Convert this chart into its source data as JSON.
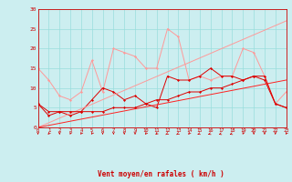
{
  "x": [
    0,
    1,
    2,
    3,
    4,
    5,
    6,
    7,
    8,
    9,
    10,
    11,
    12,
    13,
    14,
    15,
    16,
    17,
    18,
    19,
    20,
    21,
    22,
    23
  ],
  "line_rafales": [
    15,
    12,
    8,
    7,
    9,
    17,
    9,
    20,
    19,
    18,
    15,
    15,
    25,
    23,
    12,
    13,
    12,
    13,
    13,
    20,
    19,
    13,
    6,
    9
  ],
  "line_moyen": [
    6,
    3,
    4,
    3,
    4,
    7,
    10,
    9,
    7,
    8,
    6,
    5,
    13,
    12,
    12,
    13,
    15,
    13,
    13,
    12,
    13,
    12,
    6,
    5
  ],
  "line_trend_rafales": [
    0,
    1.17,
    2.35,
    3.52,
    4.7,
    5.87,
    7.04,
    8.22,
    9.39,
    10.57,
    11.74,
    12.91,
    14.09,
    15.26,
    16.43,
    17.61,
    18.78,
    19.96,
    21.13,
    22.3,
    23.48,
    24.65,
    25.83,
    27.0
  ],
  "line_trend_moyen": [
    0,
    0.52,
    1.04,
    1.57,
    2.09,
    2.61,
    3.13,
    3.65,
    4.17,
    4.7,
    5.22,
    5.74,
    6.26,
    6.78,
    7.3,
    7.83,
    8.35,
    8.87,
    9.39,
    9.91,
    10.43,
    10.96,
    11.48,
    12.0
  ],
  "line_flat": [
    6,
    4,
    4,
    4,
    4,
    4,
    4,
    5,
    5,
    5,
    6,
    7,
    7,
    8,
    9,
    9,
    10,
    10,
    11,
    12,
    13,
    13,
    6,
    5
  ],
  "wind_dirs": [
    180,
    200,
    180,
    190,
    195,
    195,
    180,
    180,
    180,
    180,
    200,
    210,
    220,
    220,
    200,
    240,
    250,
    260,
    250,
    190,
    180,
    180,
    180,
    195
  ],
  "xlabel": "Vent moyen/en rafales ( km/h )",
  "ylim": [
    0,
    30
  ],
  "xlim": [
    0,
    23
  ],
  "yticks": [
    0,
    5,
    10,
    15,
    20,
    25,
    30
  ],
  "bg_color": "#cceef0",
  "grid_color": "#99dddd",
  "color_light": "#ff9999",
  "color_dark": "#dd0000",
  "color_mid": "#ff2222"
}
